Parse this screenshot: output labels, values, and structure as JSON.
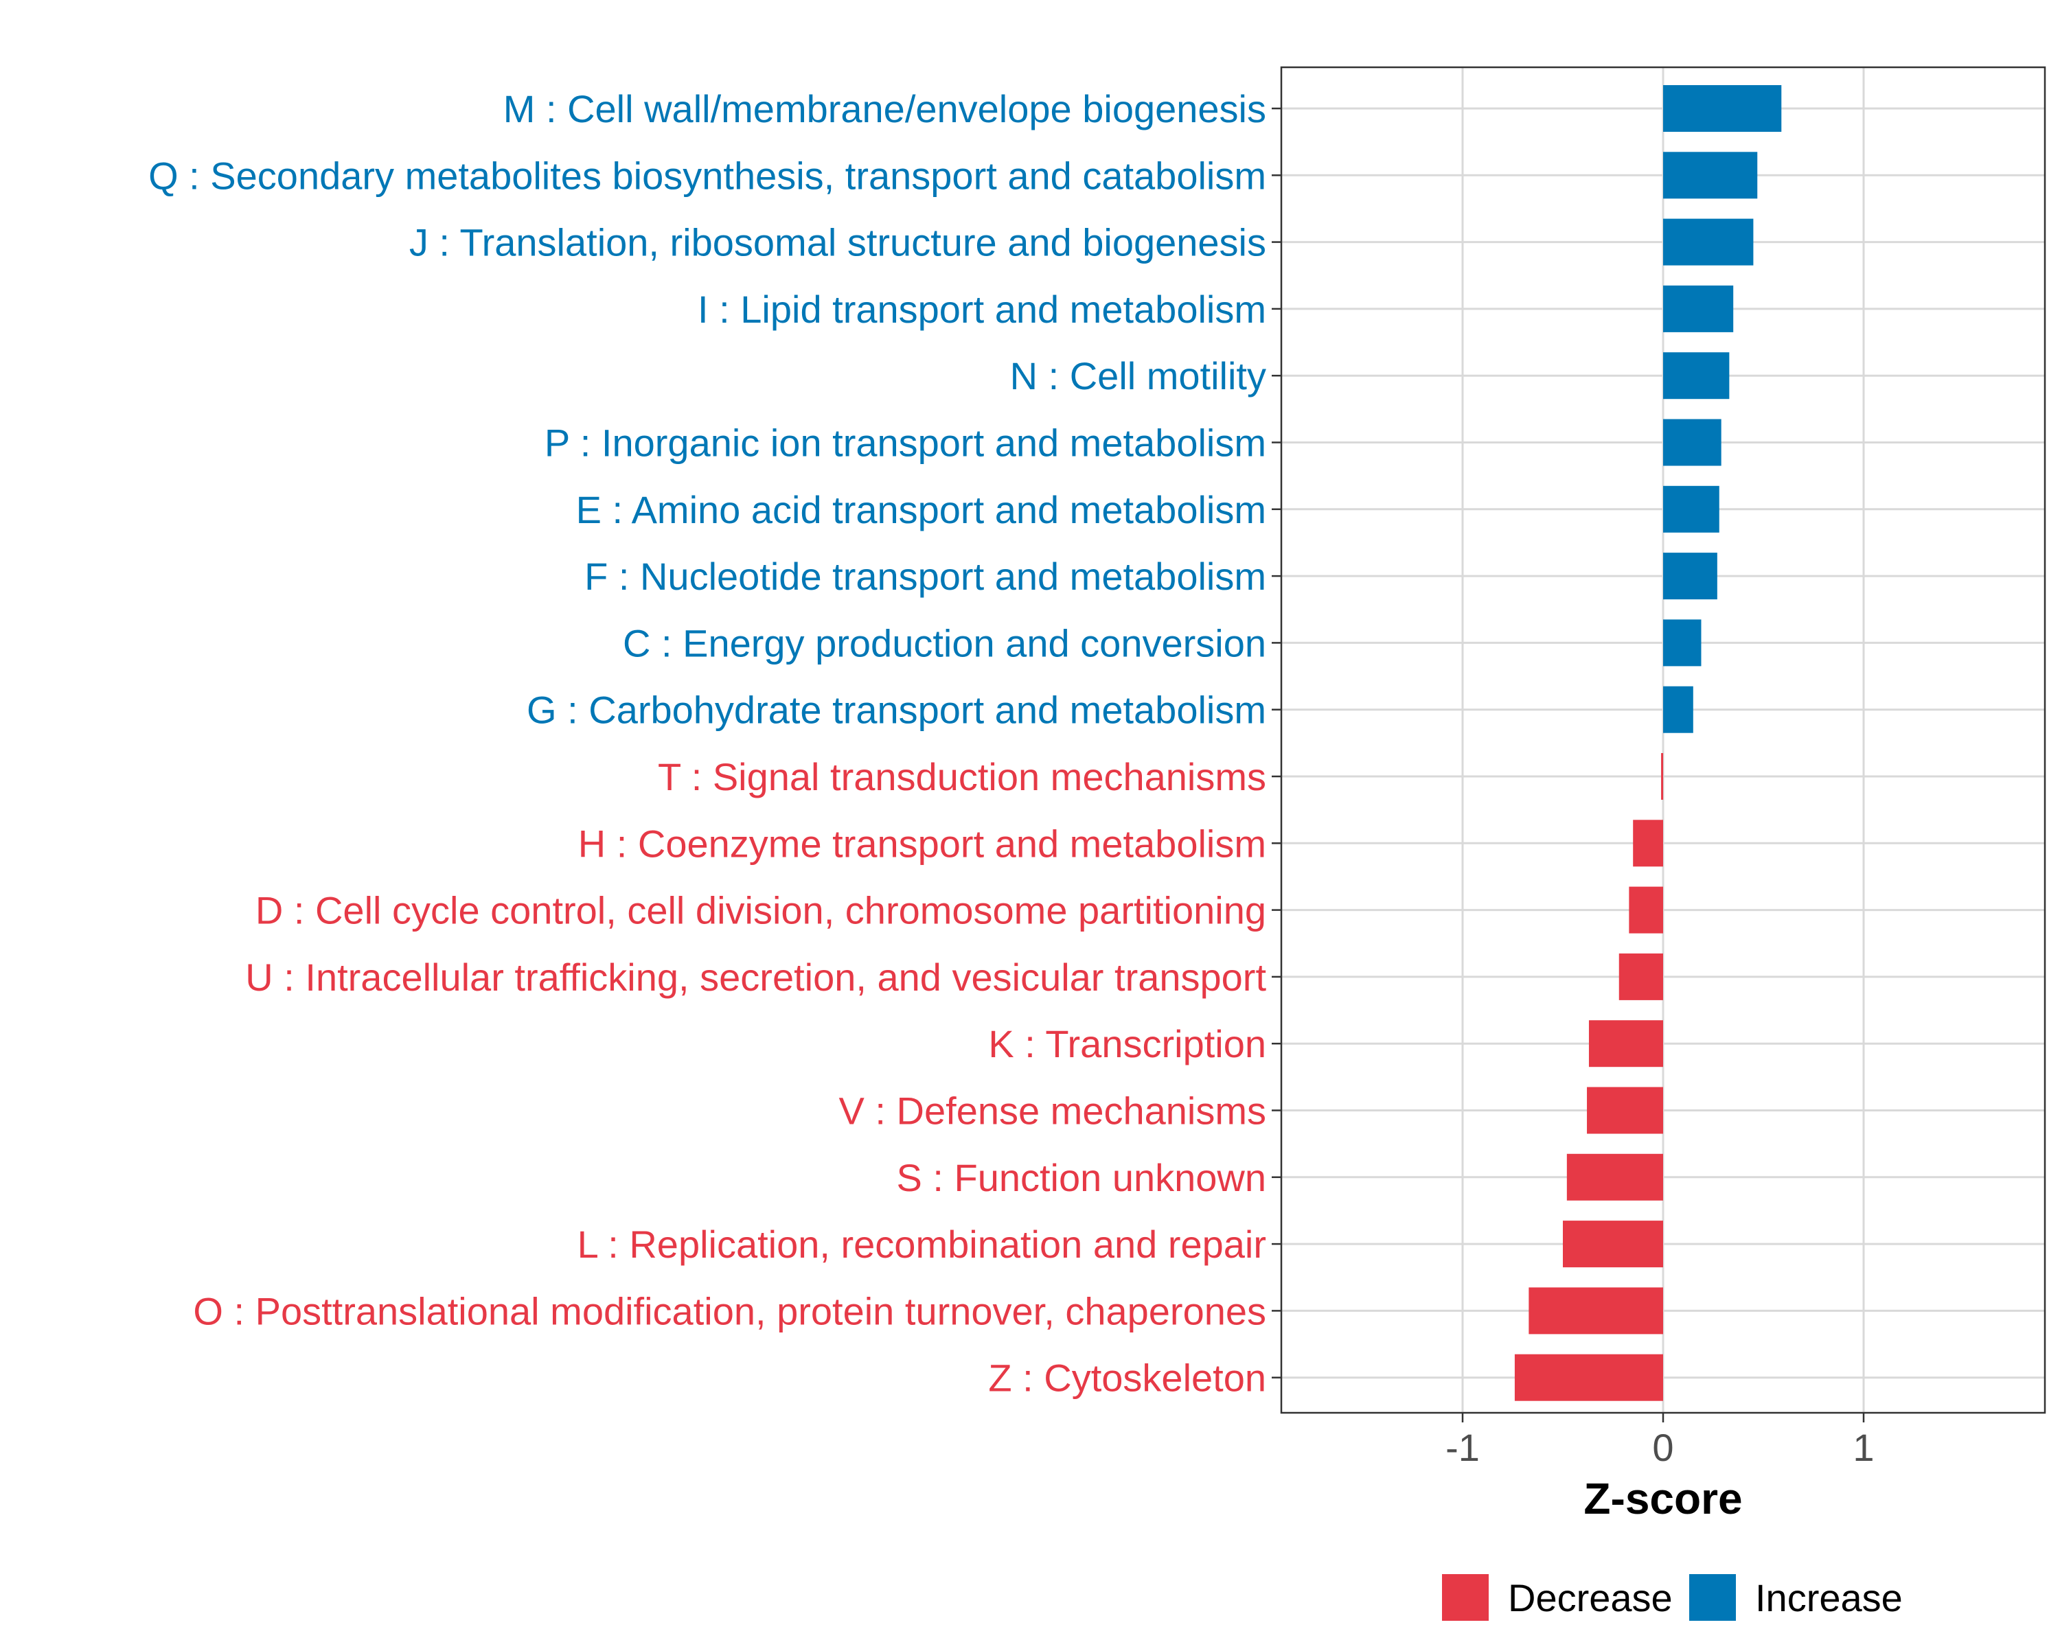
{
  "chart_data": {
    "type": "bar",
    "orientation": "horizontal",
    "xlabel": "Z-score",
    "ylabel": "",
    "xlim": [
      -1.92,
      1.92
    ],
    "xticks": [
      -1,
      0,
      1
    ],
    "xtick_labels": [
      "-1",
      "0",
      "1"
    ],
    "grid": true,
    "legend": {
      "position": "bottom",
      "entries": [
        {
          "label": "Decrease",
          "color": "#E63946"
        },
        {
          "label": "Increase",
          "color": "#0077B6"
        }
      ]
    },
    "colors": {
      "Decrease": "#E63946",
      "Increase": "#0077B6"
    },
    "categories": [
      "M : Cell wall/membrane/envelope biogenesis",
      "Q : Secondary metabolites biosynthesis, transport and catabolism",
      "J : Translation, ribosomal structure and biogenesis",
      "I : Lipid transport and metabolism",
      "N : Cell motility",
      "P : Inorganic ion transport and metabolism",
      "E : Amino acid transport and metabolism",
      "F : Nucleotide transport and metabolism",
      "C : Energy production and conversion",
      "G : Carbohydrate transport and metabolism",
      "T : Signal transduction mechanisms",
      "H : Coenzyme transport and metabolism",
      "D : Cell cycle control, cell division, chromosome partitioning",
      "U : Intracellular trafficking, secretion, and vesicular transport",
      "K : Transcription",
      "V : Defense mechanisms",
      "S : Function unknown",
      "L : Replication, recombination and repair",
      "O : Posttranslational modification, protein turnover, chaperones",
      "Z : Cytoskeleton"
    ],
    "values": [
      0.59,
      0.47,
      0.45,
      0.35,
      0.33,
      0.29,
      0.28,
      0.27,
      0.19,
      0.15,
      -0.01,
      -0.15,
      -0.17,
      -0.22,
      -0.37,
      -0.38,
      -0.48,
      -0.5,
      -0.67,
      -0.74
    ],
    "groups": [
      "Increase",
      "Increase",
      "Increase",
      "Increase",
      "Increase",
      "Increase",
      "Increase",
      "Increase",
      "Increase",
      "Increase",
      "Decrease",
      "Decrease",
      "Decrease",
      "Decrease",
      "Decrease",
      "Decrease",
      "Decrease",
      "Decrease",
      "Decrease",
      "Decrease"
    ]
  }
}
